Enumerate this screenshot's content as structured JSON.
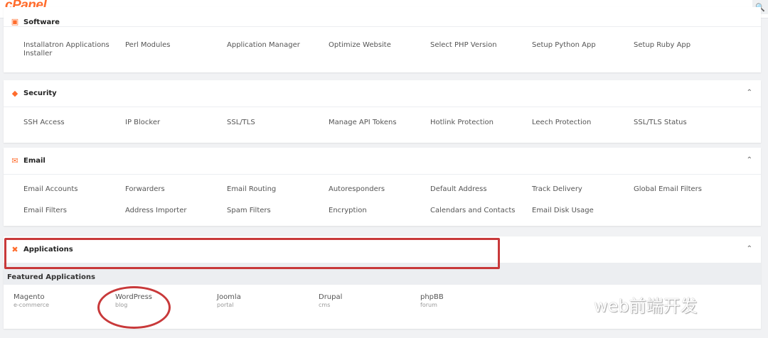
{
  "header": {
    "logo": "cPanel",
    "search_icon": "search-icon"
  },
  "software": {
    "title": "Software",
    "items": [
      "Installatron Applications Installer",
      "Perl Modules",
      "Application Manager",
      "Optimize Website",
      "Select PHP Version",
      "Setup Python App",
      "Setup Ruby App"
    ]
  },
  "security": {
    "title": "Security",
    "items": [
      "SSH Access",
      "IP Blocker",
      "SSL/TLS",
      "Manage API Tokens",
      "Hotlink Protection",
      "Leech Protection",
      "SSL/TLS Status"
    ]
  },
  "email": {
    "title": "Email",
    "items": [
      "Email Accounts",
      "Forwarders",
      "Email Routing",
      "Autoresponders",
      "Default Address",
      "Track Delivery",
      "Global Email Filters",
      "Email Filters",
      "Address Importer",
      "Spam Filters",
      "Encryption",
      "Calendars and Contacts",
      "Email Disk Usage"
    ]
  },
  "applications": {
    "title": "Applications",
    "featured_label": "Featured Applications",
    "apps": [
      {
        "name": "Magento",
        "type": "e-commerce"
      },
      {
        "name": "WordPress",
        "type": "blog"
      },
      {
        "name": "Joomla",
        "type": "portal"
      },
      {
        "name": "Drupal",
        "type": "cms"
      },
      {
        "name": "phpBB",
        "type": "forum"
      }
    ]
  },
  "watermark": "web前端开发",
  "colors": {
    "accent": "#ff6c2c",
    "annotation": "#c8393a"
  }
}
